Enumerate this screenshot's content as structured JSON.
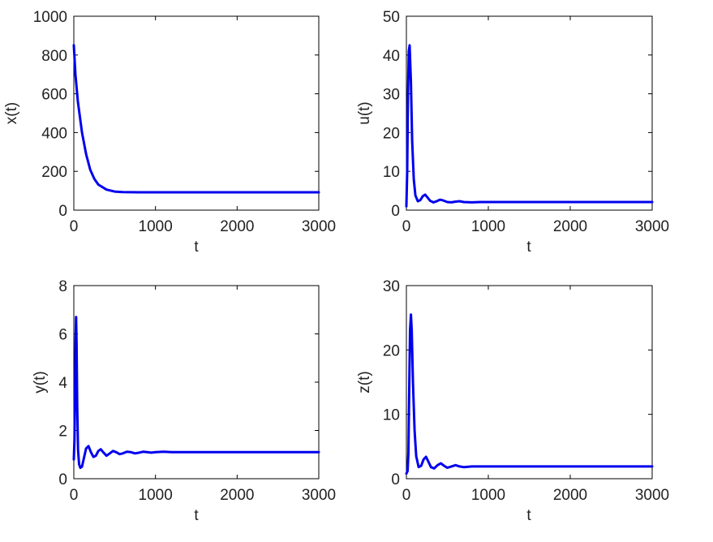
{
  "figure": {
    "background": "#ffffff",
    "line_color": "#0000ee"
  },
  "chart_data": [
    {
      "type": "line",
      "xlabel": "t",
      "ylabel": "x(t)",
      "xlim": [
        0,
        3000
      ],
      "ylim": [
        0,
        1000
      ],
      "xticks": [
        "0",
        "1000",
        "2000",
        "3000"
      ],
      "yticks": [
        "0",
        "200",
        "400",
        "600",
        "800",
        "1000"
      ],
      "series": [
        {
          "x": [
            0,
            20,
            50,
            100,
            150,
            200,
            250,
            300,
            400,
            500,
            600,
            800,
            1000,
            1500,
            2000,
            2500,
            3000
          ],
          "values": [
            850,
            700,
            560,
            400,
            290,
            210,
            162,
            132,
            106,
            96,
            93,
            92,
            92,
            92,
            92,
            92,
            92
          ]
        }
      ]
    },
    {
      "type": "line",
      "xlabel": "t",
      "ylabel": "u(t)",
      "xlim": [
        0,
        3000
      ],
      "ylim": [
        0,
        50
      ],
      "xticks": [
        "0",
        "1000",
        "2000",
        "3000"
      ],
      "yticks": [
        "0",
        "10",
        "20",
        "30",
        "40",
        "50"
      ],
      "series": [
        {
          "x": [
            0,
            10,
            20,
            30,
            40,
            55,
            70,
            90,
            110,
            140,
            170,
            200,
            230,
            260,
            290,
            330,
            370,
            410,
            450,
            500,
            550,
            600,
            650,
            700,
            800,
            900,
            1000,
            1200,
            1500,
            2000,
            2500,
            3000
          ],
          "values": [
            1,
            10,
            30,
            41,
            42.5,
            33,
            18,
            8,
            3.8,
            2.3,
            2.6,
            3.6,
            4,
            3.2,
            2.4,
            2,
            2.3,
            2.7,
            2.5,
            2.1,
            2,
            2.2,
            2.3,
            2.1,
            2,
            2.1,
            2.1,
            2.1,
            2.1,
            2.1,
            2.1,
            2.1
          ]
        }
      ]
    },
    {
      "type": "line",
      "xlabel": "t",
      "ylabel": "y(t)",
      "xlim": [
        0,
        3000
      ],
      "ylim": [
        0,
        8
      ],
      "xticks": [
        "0",
        "1000",
        "2000",
        "3000"
      ],
      "yticks": [
        "0",
        "2",
        "4",
        "6",
        "8"
      ],
      "series": [
        {
          "x": [
            0,
            8,
            16,
            22,
            28,
            34,
            42,
            52,
            65,
            80,
            100,
            120,
            150,
            180,
            210,
            240,
            270,
            300,
            330,
            360,
            400,
            440,
            480,
            520,
            560,
            600,
            650,
            700,
            750,
            800,
            850,
            900,
            950,
            1000,
            1100,
            1200,
            1300,
            1500,
            2000,
            2500,
            3000
          ],
          "values": [
            0.8,
            1.6,
            3.8,
            5.8,
            6.7,
            5.6,
            3,
            1.2,
            0.6,
            0.45,
            0.5,
            0.8,
            1.25,
            1.35,
            1.1,
            0.9,
            0.95,
            1.15,
            1.22,
            1.1,
            0.95,
            1.05,
            1.15,
            1.1,
            1.02,
            1.05,
            1.12,
            1.1,
            1.05,
            1.08,
            1.12,
            1.1,
            1.08,
            1.1,
            1.12,
            1.1,
            1.1,
            1.1,
            1.1,
            1.1,
            1.1
          ]
        }
      ]
    },
    {
      "type": "line",
      "xlabel": "t",
      "ylabel": "z(t)",
      "xlim": [
        0,
        3000
      ],
      "ylim": [
        0,
        30
      ],
      "xticks": [
        "0",
        "1000",
        "2000",
        "3000"
      ],
      "yticks": [
        "0",
        "10",
        "20",
        "30"
      ],
      "series": [
        {
          "x": [
            0,
            15,
            25,
            35,
            45,
            55,
            65,
            80,
            100,
            120,
            150,
            180,
            210,
            240,
            270,
            300,
            340,
            380,
            420,
            460,
            500,
            550,
            600,
            650,
            700,
            800,
            900,
            1000,
            1500,
            2000,
            2500,
            3000
          ],
          "values": [
            0.8,
            1.2,
            4,
            14,
            23,
            25.5,
            23,
            15,
            7.5,
            3.5,
            1.8,
            2,
            3,
            3.4,
            2.6,
            1.8,
            1.6,
            2.1,
            2.4,
            2,
            1.7,
            1.9,
            2.1,
            1.9,
            1.8,
            1.9,
            1.9,
            1.9,
            1.9,
            1.9,
            1.9,
            1.9
          ]
        }
      ]
    }
  ]
}
